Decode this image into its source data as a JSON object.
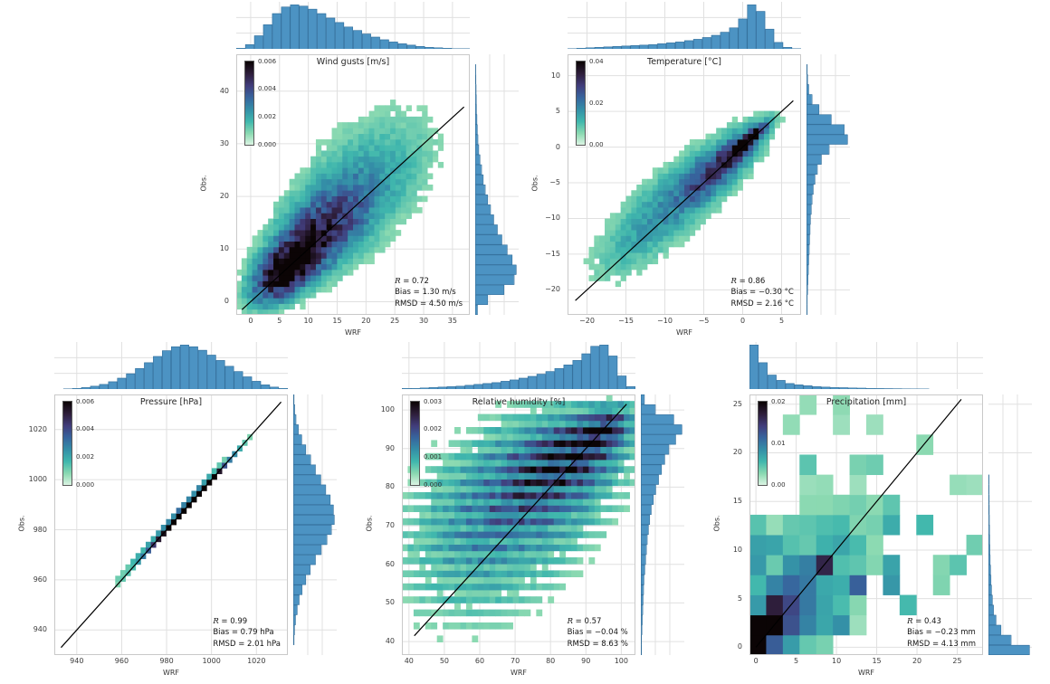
{
  "figure": {
    "background": "#ffffff",
    "marginal_fill": "#4c93c3",
    "marginal_edge": "#35709c",
    "grid_color": "#e0e0e0",
    "spine_color": "#c9c9c9",
    "identity_line_color": "#000000",
    "text_color": "#262626",
    "colormap_stops": [
      "#def5e5",
      "#8ad9b1",
      "#40b7ad",
      "#348fa7",
      "#37659e",
      "#413d7b",
      "#2e1e3b",
      "#0b0405"
    ]
  },
  "chart_data": [
    {
      "id": "wind-gusts",
      "type": "heatmap",
      "title": "Wind gusts [m/s]",
      "xlabel": "WRF",
      "ylabel": "Obs.",
      "xlim": [
        -2.5,
        38
      ],
      "ylim": [
        -2.5,
        47
      ],
      "xticks": [
        0,
        5,
        10,
        15,
        20,
        25,
        30,
        35
      ],
      "yticks": [
        0,
        10,
        20,
        30,
        40
      ],
      "colorbar_ticks": [
        "0.000",
        "0.002",
        "0.004",
        "0.006"
      ],
      "stats": [
        "R = 0.72",
        "Bias = 1.30 m/s",
        "RMSD = 4.50 m/s"
      ],
      "identity_line": [
        [
          -1.5,
          -1.5
        ],
        [
          37,
          37
        ]
      ],
      "bins": [
        44,
        46
      ],
      "gain": 1.6,
      "cut": 0.05,
      "seed": 11,
      "noise": 0.6,
      "density": [
        {
          "w": 1.0,
          "cx": 6,
          "cy": 6,
          "sx": 3.4,
          "sy": 3.6,
          "rho": 0.55
        },
        {
          "w": 0.62,
          "cx": 11.5,
          "cy": 12.5,
          "sx": 5.2,
          "sy": 5.6,
          "rho": 0.6
        },
        {
          "w": 0.22,
          "cx": 17,
          "cy": 19.5,
          "sx": 7.5,
          "sy": 8.5,
          "rho": 0.5
        },
        {
          "w": 0.05,
          "cx": 24,
          "cy": 27,
          "sx": 8,
          "sy": 8,
          "rho": 0.3
        }
      ],
      "speckle": {
        "p": 0.015,
        "amp": 0.05,
        "env": {
          "cx": 18,
          "cy": 20,
          "sx": 12,
          "sy": 12
        }
      },
      "marginal_top": [
        0.02,
        0.1,
        0.3,
        0.55,
        0.8,
        0.95,
        1.0,
        0.97,
        0.9,
        0.8,
        0.7,
        0.6,
        0.5,
        0.42,
        0.34,
        0.27,
        0.21,
        0.16,
        0.12,
        0.09,
        0.06,
        0.04,
        0.03,
        0.02,
        0.01,
        0.01
      ],
      "marginal_right": [
        0.05,
        0.3,
        0.7,
        0.95,
        1.0,
        0.9,
        0.78,
        0.65,
        0.54,
        0.45,
        0.37,
        0.3,
        0.24,
        0.19,
        0.15,
        0.11,
        0.08,
        0.06,
        0.045,
        0.035,
        0.025,
        0.02,
        0.015,
        0.01,
        0.007,
        0.004
      ]
    },
    {
      "id": "temperature",
      "type": "heatmap",
      "title": "Temperature [°C]",
      "xlabel": "WRF",
      "ylabel": "Obs.",
      "xlim": [
        -22.5,
        7.5
      ],
      "ylim": [
        -23.5,
        13
      ],
      "xticks": [
        -20,
        -15,
        -10,
        -5,
        0,
        5
      ],
      "yticks": [
        -20,
        -15,
        -10,
        -5,
        0,
        5,
        10
      ],
      "colorbar_ticks": [
        "0.00",
        "0.02",
        "0.04"
      ],
      "stats": [
        "R = 0.86",
        "Bias = −0.30 °C",
        "RMSD = 2.16 °C"
      ],
      "identity_line": [
        [
          -21.5,
          -21.5
        ],
        [
          6.5,
          6.5
        ]
      ],
      "bins": [
        44,
        46
      ],
      "gain": 1.75,
      "cut": 0.055,
      "seed": 23,
      "noise": 0.55,
      "density": [
        {
          "w": 1.0,
          "cx": 0.7,
          "cy": 0.9,
          "sx": 1.4,
          "sy": 1.4,
          "rho": 0.88
        },
        {
          "w": 0.55,
          "cx": -2.5,
          "cy": -2.2,
          "sx": 3.0,
          "sy": 3.0,
          "rho": 0.82
        },
        {
          "w": 0.25,
          "cx": -7.5,
          "cy": -6.5,
          "sx": 5.5,
          "sy": 5.5,
          "rho": 0.78
        },
        {
          "w": 0.07,
          "cx": -14,
          "cy": -13,
          "sx": 4.5,
          "sy": 5.0,
          "rho": 0.7
        }
      ],
      "speckle": {
        "p": 0.012,
        "amp": 0.04,
        "env": {
          "cx": -6,
          "cy": -5,
          "sx": 9,
          "sy": 9
        }
      },
      "marginal_top": [
        0.01,
        0.02,
        0.03,
        0.04,
        0.05,
        0.06,
        0.07,
        0.08,
        0.09,
        0.1,
        0.12,
        0.14,
        0.16,
        0.19,
        0.22,
        0.26,
        0.31,
        0.38,
        0.48,
        0.68,
        1.0,
        0.85,
        0.45,
        0.15,
        0.04,
        0.01
      ],
      "marginal_right": [
        0.01,
        0.01,
        0.02,
        0.03,
        0.04,
        0.05,
        0.06,
        0.07,
        0.08,
        0.09,
        0.11,
        0.13,
        0.16,
        0.2,
        0.26,
        0.36,
        0.55,
        1.0,
        0.92,
        0.6,
        0.3,
        0.13,
        0.05,
        0.02,
        0.01,
        0.005
      ]
    },
    {
      "id": "pressure",
      "type": "heatmap",
      "title": "Pressure [hPa]",
      "xlabel": "WRF",
      "ylabel": "Obs.",
      "xlim": [
        930,
        1034
      ],
      "ylim": [
        930,
        1034
      ],
      "xticks": [
        940,
        960,
        980,
        1000,
        1020
      ],
      "yticks": [
        940,
        960,
        980,
        1000,
        1020
      ],
      "colorbar_ticks": [
        "0.000",
        "0.002",
        "0.004",
        "0.006"
      ],
      "stats": [
        "R = 0.99",
        "Bias = 0.79 hPa",
        "RMSD = 2.01 hPa"
      ],
      "identity_line": [
        [
          933,
          933
        ],
        [
          1031,
          1031
        ]
      ],
      "bins": [
        46,
        46
      ],
      "gain": 2.1,
      "cut": 0.055,
      "seed": 5,
      "noise": 0.5,
      "density": [
        {
          "w": 1.0,
          "cx": 987,
          "cy": 987.7,
          "sx": 8.5,
          "sy": 8.5,
          "rho": 0.9965
        },
        {
          "w": 0.55,
          "cx": 997,
          "cy": 997.6,
          "sx": 9,
          "sy": 9,
          "rho": 0.996
        },
        {
          "w": 0.12,
          "cx": 975,
          "cy": 976,
          "sx": 12,
          "sy": 12,
          "rho": 0.99
        }
      ],
      "speckle": {
        "p": 0.008,
        "amp": 0.035,
        "env": {
          "cx": 990,
          "cy": 990,
          "sx": 25,
          "sy": 25
        }
      },
      "marginal_top": [
        0.005,
        0.01,
        0.02,
        0.04,
        0.07,
        0.11,
        0.17,
        0.25,
        0.35,
        0.47,
        0.6,
        0.74,
        0.87,
        0.96,
        1.0,
        0.96,
        0.88,
        0.77,
        0.65,
        0.52,
        0.4,
        0.28,
        0.18,
        0.1,
        0.05,
        0.02
      ],
      "marginal_right": [
        0.005,
        0.012,
        0.025,
        0.05,
        0.09,
        0.14,
        0.21,
        0.3,
        0.41,
        0.54,
        0.68,
        0.82,
        0.93,
        1.0,
        0.98,
        0.9,
        0.79,
        0.67,
        0.54,
        0.42,
        0.3,
        0.2,
        0.12,
        0.06,
        0.03,
        0.012
      ]
    },
    {
      "id": "relative-humidity",
      "type": "heatmap",
      "title": "Relative humidity [%]",
      "xlabel": "WRF",
      "ylabel": "Obs.",
      "xlim": [
        38,
        104
      ],
      "ylim": [
        36.5,
        104
      ],
      "xticks": [
        40,
        50,
        60,
        70,
        80,
        90,
        100
      ],
      "yticks": [
        40,
        50,
        60,
        70,
        80,
        90,
        100
      ],
      "colorbar_ticks": [
        "0.000",
        "0.001",
        "0.002",
        "0.003"
      ],
      "stats": [
        "R = 0.57",
        "Bias = −0.04 %",
        "RMSD = 8.63 %"
      ],
      "identity_line": [
        [
          41.5,
          41.5
        ],
        [
          101.5,
          101.5
        ]
      ],
      "bins": [
        40,
        40
      ],
      "gain": 1.5,
      "cut": 0.05,
      "seed": 31,
      "noise": 0.55,
      "row_banding": true,
      "density": [
        {
          "w": 1.0,
          "cx": 95,
          "cy": 94.5,
          "sx": 4.5,
          "sy": 3.5,
          "rho": 0.45
        },
        {
          "w": 0.8,
          "cx": 88,
          "cy": 90,
          "sx": 8,
          "sy": 6,
          "rho": 0.45
        },
        {
          "w": 0.55,
          "cx": 80,
          "cy": 84,
          "sx": 12,
          "sy": 9,
          "rho": 0.3
        },
        {
          "w": 0.4,
          "cx": 70,
          "cy": 76,
          "sx": 15,
          "sy": 13,
          "rho": 0.25
        },
        {
          "w": 0.18,
          "cx": 58,
          "cy": 64,
          "sx": 16,
          "sy": 15,
          "rho": 0.15
        }
      ],
      "speckle": {
        "p": 0.012,
        "amp": 0.03,
        "env": {
          "cx": 80,
          "cy": 82,
          "sx": 20,
          "sy": 18
        }
      },
      "marginal_top": [
        0.02,
        0.02,
        0.03,
        0.04,
        0.05,
        0.06,
        0.07,
        0.09,
        0.11,
        0.13,
        0.15,
        0.18,
        0.21,
        0.25,
        0.29,
        0.34,
        0.4,
        0.47,
        0.55,
        0.65,
        0.8,
        0.97,
        1.0,
        0.75,
        0.3,
        0.06
      ],
      "marginal_right": [
        0.01,
        0.01,
        0.02,
        0.03,
        0.04,
        0.05,
        0.06,
        0.07,
        0.09,
        0.11,
        0.13,
        0.15,
        0.18,
        0.21,
        0.25,
        0.3,
        0.36,
        0.43,
        0.5,
        0.58,
        0.68,
        0.85,
        1.0,
        0.8,
        0.35,
        0.08
      ]
    },
    {
      "id": "precipitation",
      "type": "heatmap",
      "title": "Precipitation [mm]",
      "xlabel": "WRF",
      "ylabel": "Obs.",
      "xlim": [
        -0.8,
        28.2
      ],
      "ylim": [
        -0.8,
        26
      ],
      "xticks": [
        0,
        5,
        10,
        15,
        20,
        25
      ],
      "yticks": [
        0,
        5,
        10,
        15,
        20,
        25
      ],
      "colorbar_ticks": [
        "0.00",
        "0.01",
        "0.02"
      ],
      "stats": [
        "R = 0.43",
        "Bias = −0.23 mm",
        "RMSD = 4.13 mm"
      ],
      "identity_line": [
        [
          0,
          0
        ],
        [
          25.5,
          25.5
        ]
      ],
      "bins": [
        14,
        13
      ],
      "gain": 1.6,
      "cut": 0.035,
      "seed": 3,
      "noise": 0.9,
      "density": [
        {
          "w": 1.0,
          "cx": 1.3,
          "cy": 1.3,
          "sx": 1.5,
          "sy": 1.6,
          "rho": 0.45
        },
        {
          "w": 0.3,
          "cx": 4.5,
          "cy": 4,
          "sx": 3.2,
          "sy": 3.2,
          "rho": 0.35
        },
        {
          "w": 0.12,
          "cx": 8,
          "cy": 8.5,
          "sx": 5,
          "sy": 5,
          "rho": 0.25
        }
      ],
      "speckle": {
        "p": 0.18,
        "amp": 0.35,
        "env": {
          "cx": 6,
          "cy": 7,
          "sx": 12,
          "sy": 9
        }
      },
      "marginal_top": [
        1.0,
        0.6,
        0.32,
        0.2,
        0.13,
        0.1,
        0.08,
        0.06,
        0.05,
        0.04,
        0.035,
        0.03,
        0.025,
        0.02,
        0.017,
        0.014,
        0.012,
        0.01,
        0.008,
        0.007,
        0.006,
        0.005,
        0.004,
        0.004,
        0.003,
        0.003
      ],
      "marginal_right": [
        1.0,
        0.55,
        0.3,
        0.18,
        0.12,
        0.09,
        0.07,
        0.055,
        0.045,
        0.035,
        0.03,
        0.025,
        0.02,
        0.016,
        0.013,
        0.011,
        0.009,
        0.008,
        0.006,
        0.005,
        0.004,
        0.004,
        0.003,
        0.003,
        0.002,
        0.002
      ]
    }
  ]
}
